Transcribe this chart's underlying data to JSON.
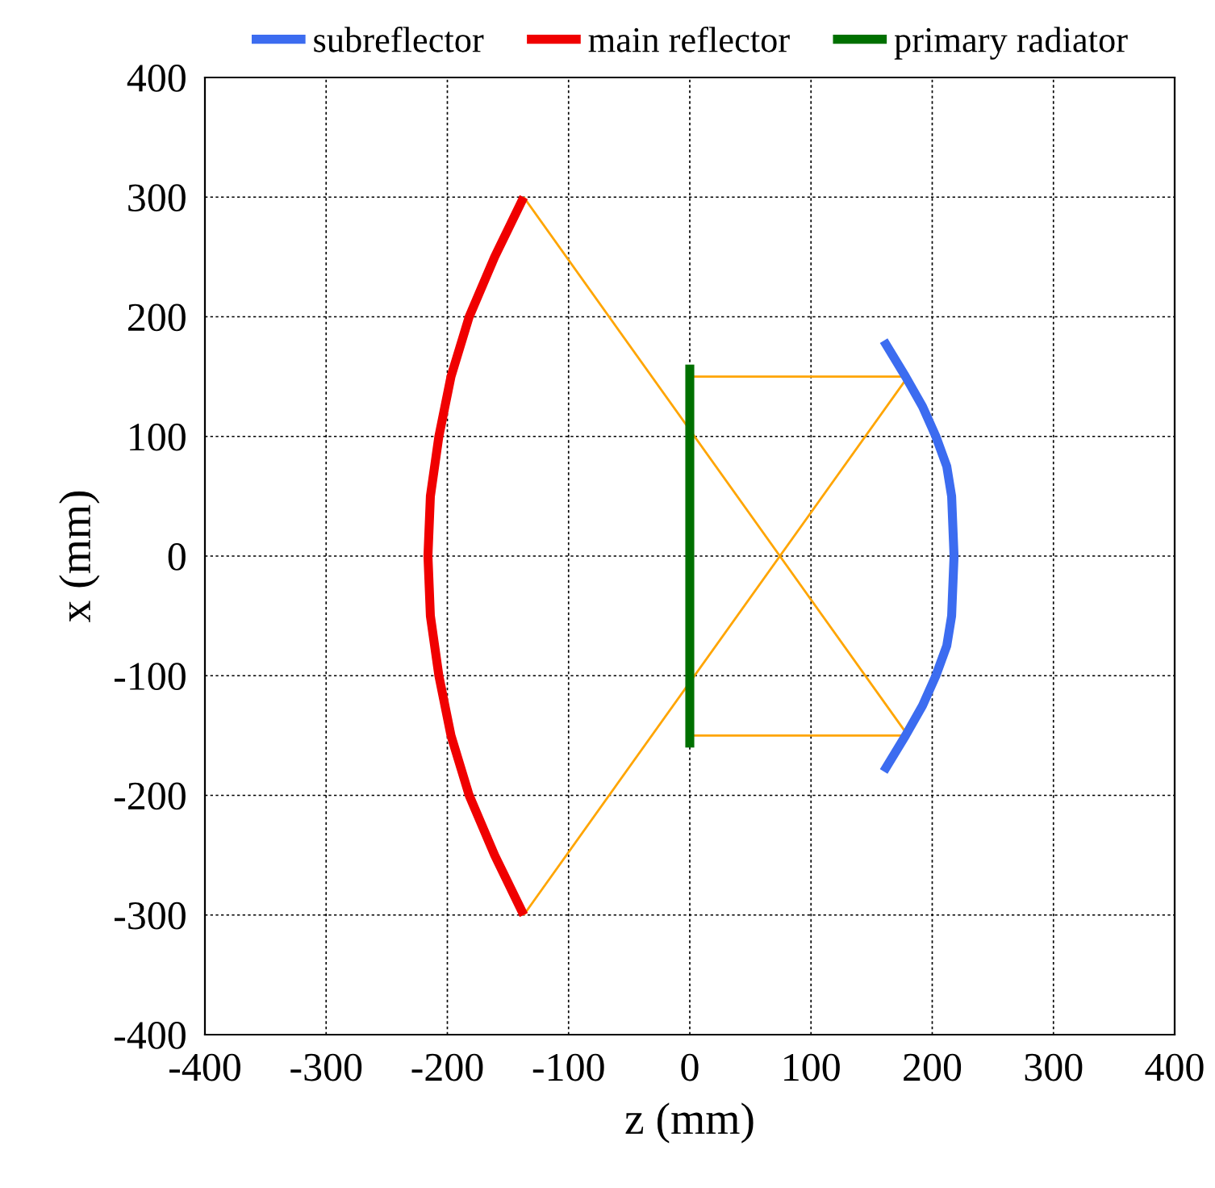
{
  "chart_data": {
    "type": "line",
    "xlabel": "z (mm)",
    "ylabel": "x (mm)",
    "xlim": [
      -400,
      400
    ],
    "ylim": [
      -400,
      400
    ],
    "xticks": [
      -400,
      -300,
      -200,
      -100,
      0,
      100,
      200,
      300,
      400
    ],
    "yticks": [
      -400,
      -300,
      -200,
      -100,
      0,
      100,
      200,
      300,
      400
    ],
    "grid": true,
    "legend": "top",
    "marker": "none",
    "series": [
      {
        "name": "subreflector",
        "color": "#3c6cf0",
        "x": [
          160,
          178,
          192,
          203,
          212,
          216,
          218,
          216,
          212,
          203,
          192,
          178,
          160
        ],
        "values": [
          180,
          150,
          125,
          100,
          75,
          50,
          0,
          -50,
          -75,
          -100,
          -125,
          -150,
          -180
        ]
      },
      {
        "name": "main reflector",
        "color": "#f00000",
        "x": [
          -137,
          -161,
          -182,
          -197,
          -207,
          -214,
          -216,
          -214,
          -207,
          -197,
          -182,
          -161,
          -137
        ],
        "values": [
          300,
          250,
          200,
          150,
          100,
          50,
          0,
          -50,
          -100,
          -150,
          -200,
          -250,
          -300
        ]
      },
      {
        "name": "primary radiator",
        "color": "#007000",
        "x": [
          0,
          0
        ],
        "values": [
          160,
          -160
        ]
      },
      {
        "color": "#ffa500",
        "x": [
          -137,
          180
        ],
        "values": [
          300,
          -150
        ]
      },
      {
        "color": "#ffa500",
        "x": [
          -137,
          180
        ],
        "values": [
          -300,
          150
        ]
      },
      {
        "color": "#ffa500",
        "x": [
          0,
          180
        ],
        "values": [
          150,
          150
        ]
      },
      {
        "color": "#ffa500",
        "x": [
          0,
          180
        ],
        "values": [
          -150,
          -150
        ]
      }
    ]
  }
}
